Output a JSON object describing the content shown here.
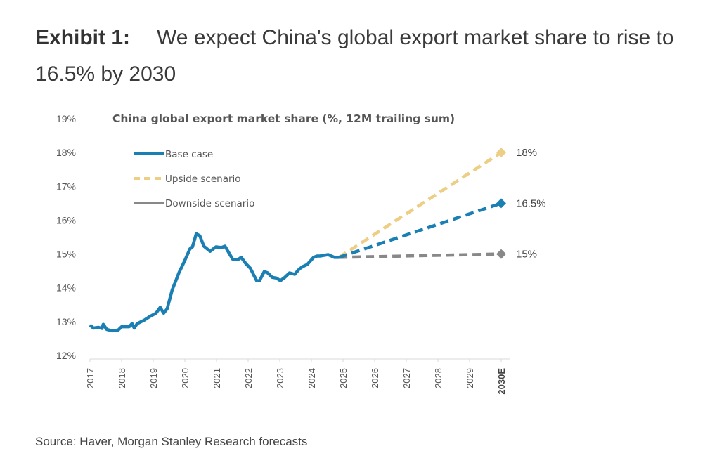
{
  "exhibit": {
    "label": "Exhibit 1:",
    "title": "We expect China's global export market share to rise to 16.5% by 2030"
  },
  "source": "Source: Haver, Morgan Stanley Research forecasts",
  "colors": {
    "base": "#1a7fb3",
    "upside": "#ecce84",
    "downside": "#888888",
    "axis": "#d9d9d9"
  },
  "chart_data": {
    "type": "line",
    "title": "China global export market share (%, 12M trailing sum)",
    "xlabel": "",
    "ylabel": "",
    "ylim": [
      12,
      19
    ],
    "xlim": [
      2017,
      2030
    ],
    "grid": false,
    "legend_position": "top-left",
    "y_ticks": [
      "12%",
      "13%",
      "14%",
      "15%",
      "16%",
      "17%",
      "18%",
      "19%"
    ],
    "x_ticks": [
      "2017",
      "2018",
      "2019",
      "2020",
      "2021",
      "2022",
      "2023",
      "2024",
      "2025",
      "2026",
      "2027",
      "2028",
      "2029",
      "2030E"
    ],
    "legend": [
      "Base case",
      "Upside scenario",
      "Downside scenario"
    ],
    "series": [
      {
        "name": "Base case",
        "style": "solid",
        "x": [
          2017.0,
          2017.11,
          2017.27,
          2017.38,
          2017.42,
          2017.53,
          2017.71,
          2017.89,
          2018.0,
          2018.24,
          2018.33,
          2018.4,
          2018.49,
          2018.71,
          2018.89,
          2019.09,
          2019.22,
          2019.33,
          2019.44,
          2019.6,
          2019.82,
          2019.98,
          2020.16,
          2020.24,
          2020.36,
          2020.47,
          2020.6,
          2020.8,
          2020.98,
          2021.16,
          2021.27,
          2021.4,
          2021.51,
          2021.67,
          2021.78,
          2021.93,
          2022.07,
          2022.27,
          2022.36,
          2022.51,
          2022.62,
          2022.76,
          2022.89,
          2023.02,
          2023.16,
          2023.31,
          2023.47,
          2023.62,
          2023.73,
          2023.87,
          2024.07,
          2024.18,
          2024.27,
          2024.53,
          2024.73,
          2024.87
        ],
        "values": [
          12.9,
          12.81,
          12.83,
          12.8,
          12.92,
          12.77,
          12.73,
          12.75,
          12.85,
          12.85,
          12.94,
          12.81,
          12.94,
          13.04,
          13.15,
          13.25,
          13.42,
          13.25,
          13.38,
          13.94,
          14.46,
          14.77,
          15.15,
          15.21,
          15.6,
          15.54,
          15.23,
          15.08,
          15.21,
          15.19,
          15.23,
          15.02,
          14.85,
          14.83,
          14.9,
          14.71,
          14.58,
          14.21,
          14.21,
          14.48,
          14.44,
          14.31,
          14.29,
          14.21,
          14.31,
          14.44,
          14.4,
          14.56,
          14.63,
          14.69,
          14.9,
          14.94,
          14.94,
          14.98,
          14.9,
          14.9
        ]
      },
      {
        "name": "Base case forecast",
        "style": "dashed",
        "x": [
          2024.87,
          2030
        ],
        "values": [
          14.9,
          16.5
        ],
        "end_label": "16.5%"
      },
      {
        "name": "Upside scenario",
        "style": "dashed",
        "x": [
          2024.87,
          2030
        ],
        "values": [
          14.9,
          18.0
        ],
        "end_label": "18%"
      },
      {
        "name": "Downside scenario",
        "style": "dashed",
        "x": [
          2024.87,
          2030
        ],
        "values": [
          14.9,
          15.0
        ],
        "end_label": "15%"
      }
    ]
  }
}
